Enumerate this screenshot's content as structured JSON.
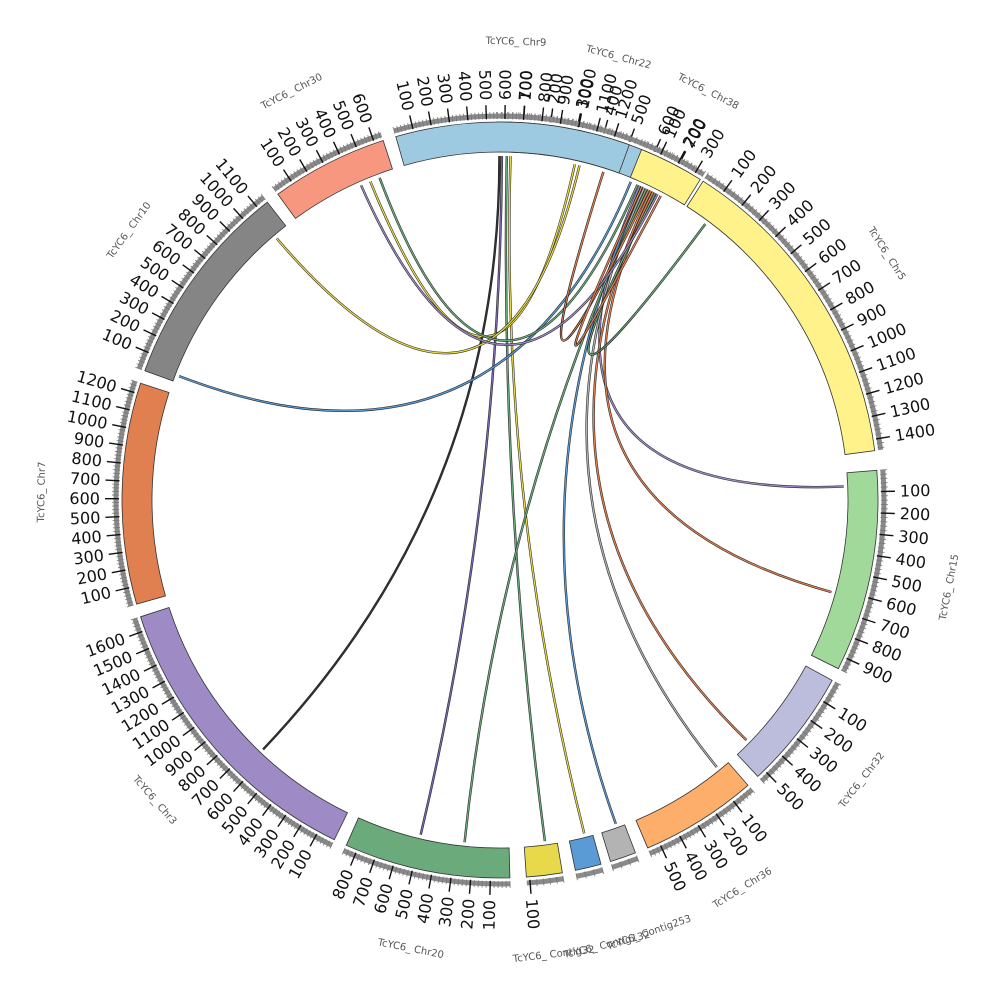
{
  "chromosomes": [
    {
      "id": "chr22",
      "name": "TcYC6_ Chr22",
      "length": 760,
      "color": "#9ecae1",
      "start_deg": 90.5,
      "end_deg": 59.5,
      "tick_step": 100
    },
    {
      "id": "chr5",
      "name": "TcYC6_ Chr5",
      "length": 1450,
      "color": "#fff28a",
      "start_deg": 57.5,
      "end_deg": 7.5,
      "tick_step": 100
    },
    {
      "id": "chr15",
      "name": "TcYC6_ Chr15",
      "length": 960,
      "color": "#a1d99b",
      "start_deg": 4.5,
      "end_deg": -26.5,
      "tick_step": 100
    },
    {
      "id": "chr32",
      "name": "TcYC6_ Chr32",
      "length": 540,
      "color": "#bcbddc",
      "start_deg": -28.5,
      "end_deg": -47,
      "tick_step": 100
    },
    {
      "id": "chr36",
      "name": "TcYC6_ Chr36",
      "length": 560,
      "color": "#fdae6b",
      "start_deg": -49,
      "end_deg": -67,
      "tick_step": 100
    },
    {
      "id": "contig253",
      "name": "TcYC6_ Contig253",
      "length": 60,
      "color": "#b3b3b3",
      "start_deg": -69,
      "end_deg": -73,
      "tick_step": 100
    },
    {
      "id": "contig132",
      "name": "TcYC6_ Contig132",
      "length": 60,
      "color": "#5b9bd5",
      "start_deg": -74.5,
      "end_deg": -78.5,
      "tick_step": 100
    },
    {
      "id": "contig32",
      "name": "TcYC6_ Contig32",
      "length": 110,
      "color": "#e8d94a",
      "start_deg": -80.5,
      "end_deg": -86,
      "tick_step": 100
    },
    {
      "id": "chr20",
      "name": "TcYC6_ Chr20",
      "length": 860,
      "color": "#6aaa7b",
      "start_deg": -88.5,
      "end_deg": -114,
      "tick_step": 100
    },
    {
      "id": "chr3",
      "name": "TcYC6_ Chr3",
      "length": 1680,
      "color": "#9e8bc6",
      "start_deg": -116,
      "end_deg": -162,
      "tick_step": 100
    },
    {
      "id": "chr7",
      "name": "TcYC6_ Chr7",
      "length": 1260,
      "color": "#e07f4f",
      "start_deg": -164,
      "end_deg": -198,
      "tick_step": 100
    },
    {
      "id": "chr10",
      "name": "TcYC6_ Chr10",
      "length": 1160,
      "color": "#858585",
      "start_deg": -200,
      "end_deg": -232,
      "tick_step": 100
    },
    {
      "id": "chr30",
      "name": "TcYC6_ Chr30",
      "length": 650,
      "color": "#f8977f",
      "start_deg": -234,
      "end_deg": -252,
      "tick_step": 100
    },
    {
      "id": "chr9",
      "name": "TcYC6_ Chr9",
      "length": 1290,
      "color": "#9ecae1",
      "start_deg": -254,
      "end_deg": -290,
      "tick_step": 100
    },
    {
      "id": "chr38",
      "name": "TcYC6_ Chr38",
      "length": 340,
      "color": "#fff28a",
      "start_deg": -292,
      "end_deg": -302,
      "tick_step": 100
    }
  ],
  "links": [
    {
      "from_chr": "chr22",
      "from_pos": 10,
      "to_chr": "chr3",
      "to_pos": 640,
      "color": "#333333"
    },
    {
      "from_chr": "chr22",
      "from_pos": 20,
      "to_chr": "chr20",
      "to_pos": 500,
      "color": "#7b68b0"
    },
    {
      "from_chr": "chr22",
      "from_pos": 40,
      "to_chr": "contig32",
      "to_pos": 40,
      "color": "#6aaa7b"
    },
    {
      "from_chr": "chr22",
      "from_pos": 55,
      "to_chr": "contig132",
      "to_pos": 20,
      "color": "#e8d94a"
    },
    {
      "from_chr": "chr22",
      "from_pos": 320,
      "to_chr": "chr30",
      "to_pos": 500,
      "color": "#e8d94a"
    },
    {
      "from_chr": "chr22",
      "from_pos": 340,
      "to_chr": "chr10",
      "to_pos": 1070,
      "color": "#e8d94a"
    },
    {
      "from_chr": "chr22",
      "from_pos": 560,
      "to_chr": "chr10",
      "to_pos": 40,
      "color": "#5b9bd5"
    },
    {
      "from_chr": "chr22",
      "from_pos": 590,
      "to_chr": "chr30",
      "to_pos": 560,
      "color": "#6aaa7b"
    },
    {
      "from_chr": "chr22",
      "from_pos": 600,
      "to_chr": "chr15",
      "to_pos": 70,
      "color": "#9e8bc6"
    },
    {
      "from_chr": "chr22",
      "from_pos": 610,
      "to_chr": "contig253",
      "to_pos": 20,
      "color": "#5b9bd5"
    },
    {
      "from_chr": "chr22",
      "from_pos": 620,
      "to_chr": "chr36",
      "to_pos": 60,
      "color": "#b3b3b3"
    },
    {
      "from_chr": "chr22",
      "from_pos": 630,
      "to_chr": "chr20",
      "to_pos": 250,
      "color": "#6aaa7b"
    },
    {
      "from_chr": "chr22",
      "from_pos": 640,
      "to_chr": "chr9",
      "to_pos": 1200,
      "color": "#e07f4f"
    },
    {
      "from_chr": "chr22",
      "from_pos": 650,
      "to_chr": "chr32",
      "to_pos": 460,
      "color": "#e07f4f"
    },
    {
      "from_chr": "chr22",
      "from_pos": 660,
      "to_chr": "chr15",
      "to_pos": 620,
      "color": "#e07f4f"
    },
    {
      "from_chr": "chr22",
      "from_pos": 670,
      "to_chr": "chr5",
      "to_pos": 120,
      "color": "#6aaa7b"
    },
    {
      "from_chr": "chr22",
      "from_pos": 680,
      "to_chr": "chr30",
      "to_pos": 440,
      "color": "#9e8bc6"
    },
    {
      "from_chr": "chr22",
      "from_pos": 695,
      "to_chr": "chr38",
      "to_pos": 80,
      "color": "#e07f4f"
    }
  ]
}
